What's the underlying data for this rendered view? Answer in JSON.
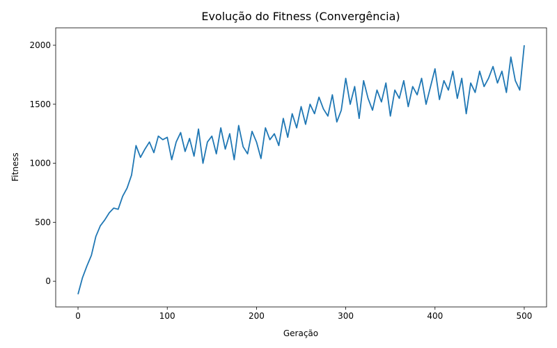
{
  "chart_data": {
    "type": "line",
    "title": "Evolução do Fitness (Convergência)",
    "xlabel": "Geração",
    "ylabel": "Fitness",
    "x": [
      0,
      5,
      10,
      15,
      20,
      25,
      30,
      35,
      40,
      45,
      50,
      55,
      60,
      65,
      70,
      75,
      80,
      85,
      90,
      95,
      100,
      105,
      110,
      115,
      120,
      125,
      130,
      135,
      140,
      145,
      150,
      155,
      160,
      165,
      170,
      175,
      180,
      185,
      190,
      195,
      200,
      205,
      210,
      215,
      220,
      225,
      230,
      235,
      240,
      245,
      250,
      255,
      260,
      265,
      270,
      275,
      280,
      285,
      290,
      295,
      300,
      305,
      310,
      315,
      320,
      325,
      330,
      335,
      340,
      345,
      350,
      355,
      360,
      365,
      370,
      375,
      380,
      385,
      390,
      395,
      400,
      405,
      410,
      415,
      420,
      425,
      430,
      435,
      440,
      445,
      450,
      455,
      460,
      465,
      470,
      475,
      480,
      485,
      490,
      495,
      500
    ],
    "series": [
      {
        "name": "Fitness",
        "color": "#1f77b4",
        "values": [
          -110,
          30,
          130,
          220,
          380,
          470,
          520,
          580,
          620,
          610,
          720,
          790,
          900,
          1150,
          1050,
          1120,
          1180,
          1090,
          1230,
          1200,
          1220,
          1030,
          1180,
          1260,
          1100,
          1210,
          1060,
          1290,
          1000,
          1180,
          1230,
          1080,
          1300,
          1120,
          1250,
          1030,
          1320,
          1140,
          1080,
          1270,
          1180,
          1040,
          1300,
          1200,
          1250,
          1150,
          1380,
          1220,
          1420,
          1300,
          1480,
          1330,
          1500,
          1420,
          1560,
          1460,
          1400,
          1580,
          1350,
          1450,
          1720,
          1500,
          1650,
          1380,
          1700,
          1550,
          1450,
          1620,
          1520,
          1680,
          1400,
          1620,
          1550,
          1700,
          1480,
          1650,
          1580,
          1720,
          1500,
          1650,
          1800,
          1540,
          1700,
          1620,
          1780,
          1550,
          1720,
          1420,
          1680,
          1600,
          1780,
          1650,
          1720,
          1820,
          1680,
          1780,
          1600,
          1900,
          1700,
          1620,
          2000
        ]
      }
    ],
    "xlim": [
      -25,
      525
    ],
    "ylim": [
      -217.5,
      2147.5
    ],
    "xticks": [
      0,
      100,
      200,
      300,
      400,
      500
    ],
    "yticks": [
      0,
      500,
      1000,
      1500,
      2000
    ],
    "grid": false
  }
}
